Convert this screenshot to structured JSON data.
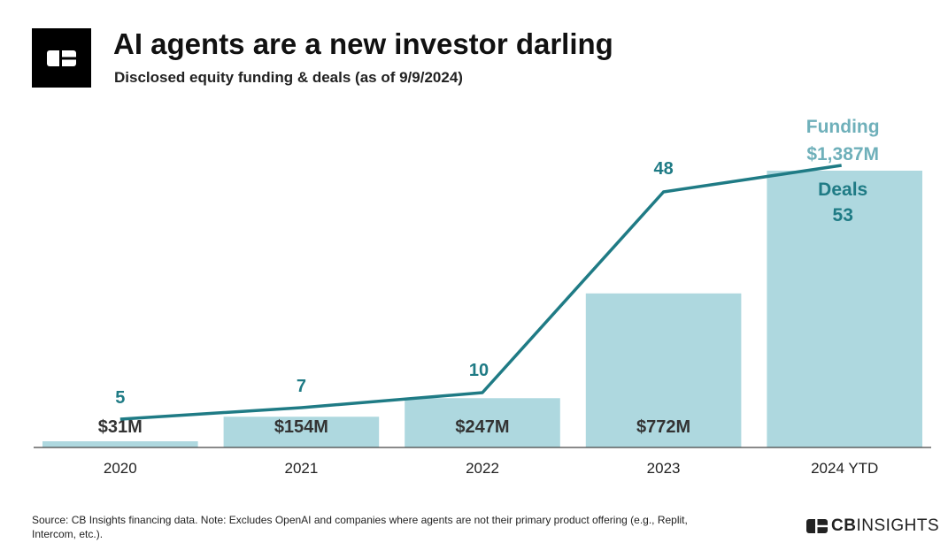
{
  "header": {
    "title": "AI agents are a new investor darling",
    "subtitle": "Disclosed equity funding & deals (as of 9/9/2024)"
  },
  "chart_data": {
    "type": "bar",
    "title": "AI agents are a new investor darling",
    "subtitle": "Disclosed equity funding & deals (as of 9/9/2024)",
    "categories": [
      "2020",
      "2021",
      "2022",
      "2023",
      "2024 YTD"
    ],
    "series": [
      {
        "name": "Funding",
        "unit": "$M",
        "type": "bar",
        "values": [
          31,
          154,
          247,
          772,
          1387
        ],
        "labels": [
          "$31M",
          "$154M",
          "$247M",
          "$772M",
          "$1,387M"
        ]
      },
      {
        "name": "Deals",
        "type": "line",
        "values": [
          5,
          7,
          10,
          48,
          53
        ],
        "labels": [
          "5",
          "7",
          "10",
          "48",
          "53"
        ]
      }
    ],
    "legend": {
      "funding": "Funding",
      "deals": "Deals"
    },
    "colors": {
      "bar": "#aed8df",
      "line": "#1f7b85",
      "line_label": "#1f7b85",
      "legend_funding": "#6fb0ba",
      "axis": "#444444",
      "text": "#333333"
    }
  },
  "footer": {
    "source": "Source: CB Insights financing data. Note: Excludes OpenAI and companies where agents are not their primary product offering (e.g., Replit, Intercom, etc.).",
    "brand_bold": "CB",
    "brand_light": "INSIGHTS"
  },
  "icons": {
    "logo": "cb-insights-logo-icon",
    "brand": "cb-insights-mark-icon"
  }
}
